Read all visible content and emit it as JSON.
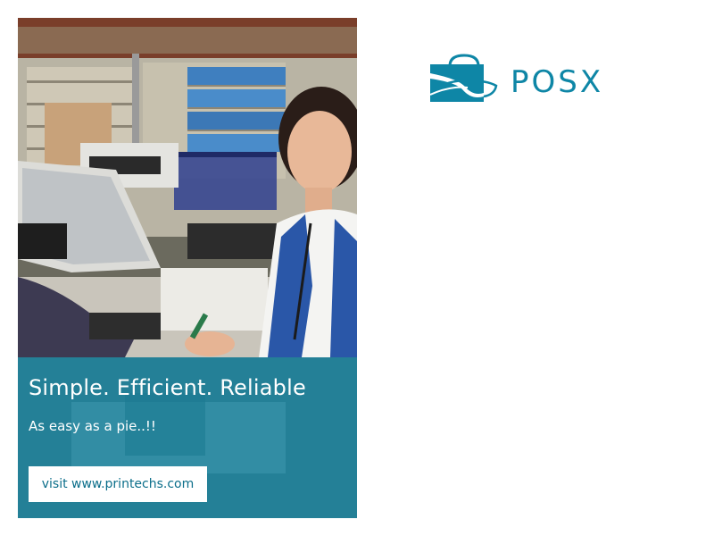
{
  "promo": {
    "headline": "Simple. Efficient. Reliable",
    "tagline": "As easy as a pie..!!",
    "cta_label": "visit www.printechs.com"
  },
  "brand": {
    "name": "POSX",
    "icon": "shopping-bag-icon",
    "color": "#0e86a6"
  },
  "photo": {
    "description_icon": "store-checkout-photo"
  },
  "colors": {
    "overlay": "#0e7e9c",
    "button_text": "#0b6e8a",
    "background": "#ffffff"
  }
}
